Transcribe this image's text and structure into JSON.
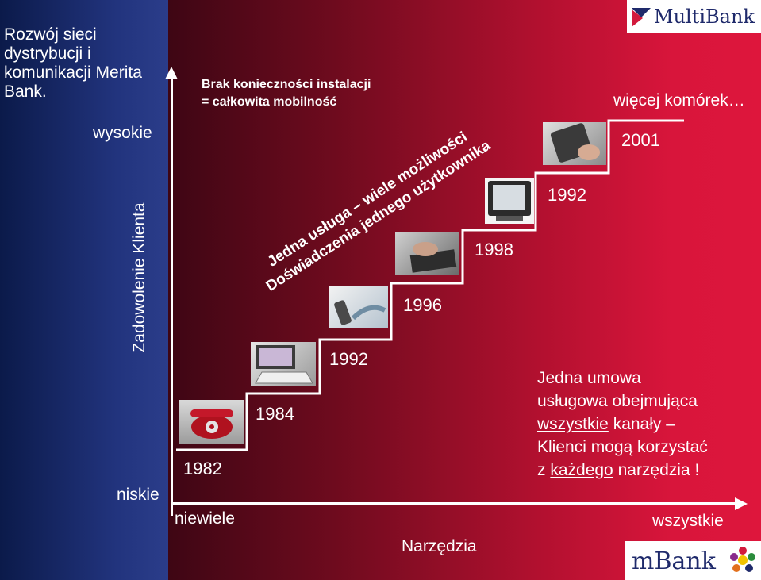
{
  "slide": {
    "title": "Rozwój sieci dystrybucji i komunikacji Merita Bank.",
    "y_axis": {
      "label": "Zadowolenie Klienta",
      "top": "wysokie",
      "bottom": "niskie"
    },
    "x_axis": {
      "label": "Narzędzia",
      "left": "niewiele",
      "right": "wszystkie"
    },
    "header_note_line1": "Brak konieczności instalacji",
    "header_note_line2": "= całkowita mobilność",
    "diagonal_line1": "Jedna usługa – wiele możliwości",
    "diagonal_line2": "Doświadczenia jednego użytkownika",
    "more_phones": "więcej komórek…",
    "years": {
      "phone": "1982",
      "computer": "1984",
      "gsm": "1992",
      "internet": "1996",
      "tv": "1998",
      "wap": "1992",
      "future": "2001"
    },
    "contract": {
      "line1": "Jedna umowa",
      "line2": "usługowa obejmująca",
      "line3_u": "wszystkie",
      "line3_rest": " kanały –",
      "line4": "Klienci mogą korzystać",
      "line5_pre": "z ",
      "line5_u": "każdego",
      "line5_post": " narzędzia !"
    },
    "logos": {
      "top": "MultiBank",
      "bottom": "mBank"
    },
    "colors": {
      "left_band": "#1c2d75",
      "background_dark": "#3e0614",
      "background_red": "#de163c",
      "text": "#ffffff",
      "logo_navy": "#1f2a6b"
    }
  }
}
